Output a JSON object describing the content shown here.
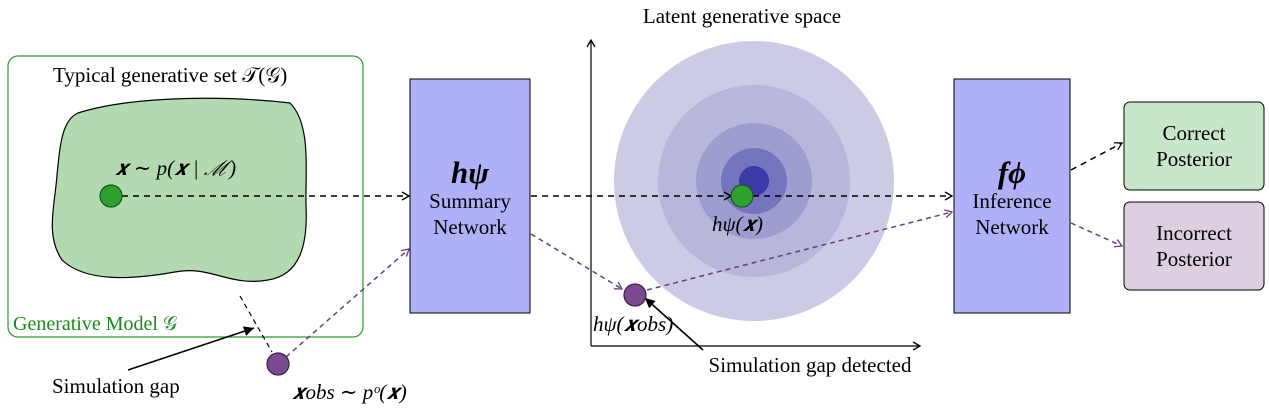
{
  "generative_model": {
    "box_label": "Generative Model 𝒢",
    "typical_set_label": "Typical generative set 𝒯(𝒢)",
    "sample_label": "𝒙 ∼ p(𝒙 | ℳ)"
  },
  "simulation_gap_label": "Simulation gap",
  "observed_label": "𝒙obs ∼ pᵒ(𝒙)",
  "summary_network": {
    "symbol": "hψ",
    "line1": "Summary",
    "line2": "Network"
  },
  "latent_space": {
    "title": "Latent generative space",
    "embedding_label": "hψ(𝒙)",
    "obs_embedding_label": "hψ(𝒙obs)",
    "gap_detected_label": "Simulation gap detected"
  },
  "inference_network": {
    "symbol": "fϕ",
    "line1": "Inference",
    "line2": "Network"
  },
  "outputs": {
    "correct_line1": "Correct",
    "correct_line2": "Posterior",
    "incorrect_line1": "Incorrect",
    "incorrect_line2": "Posterior"
  },
  "colors": {
    "green_fill": "#b3d9b0",
    "green_stroke": "#2e7d2e",
    "dot_green": "#2ea02e",
    "dot_purple": "#7b4a8f",
    "network_fill": "#b0b0f8",
    "correct_fill": "#c8e6c9",
    "incorrect_fill": "#dccfe0",
    "latent_outer": "#cbcbe5",
    "latent_center": "#3a3aa8"
  }
}
